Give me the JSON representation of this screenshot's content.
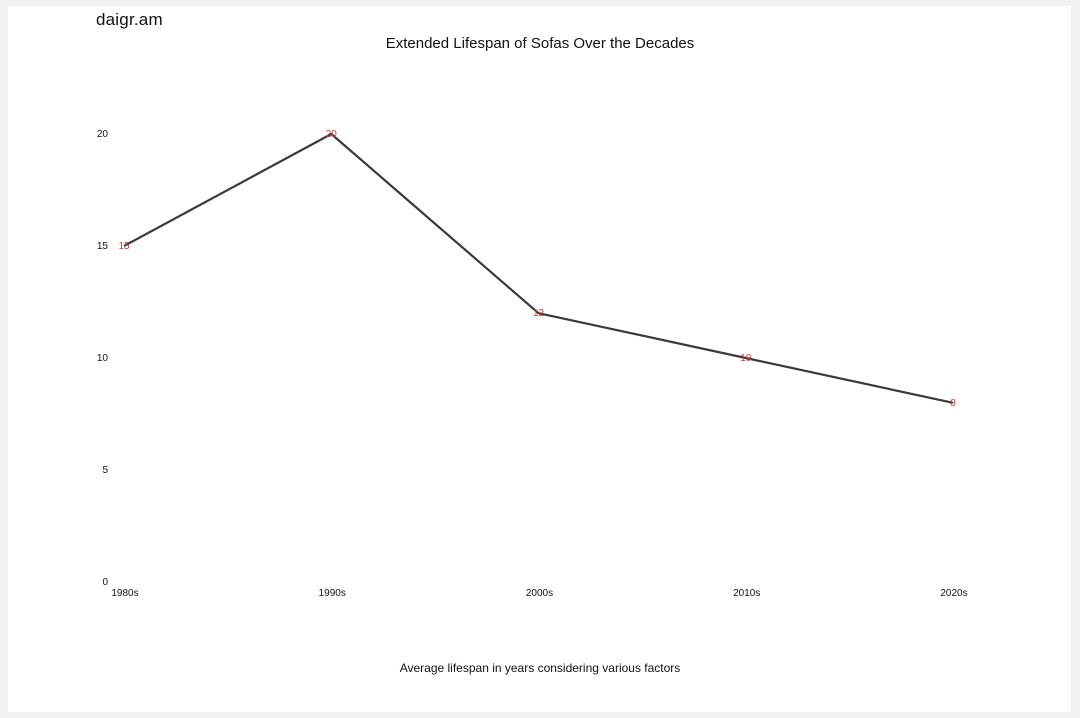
{
  "watermark": "daigr.am",
  "chart_data": {
    "type": "line",
    "title": "Extended Lifespan of Sofas Over the Decades",
    "caption": "Average lifespan in years considering various factors",
    "xlabel": "",
    "ylabel": "",
    "categories": [
      "1980s",
      "1990s",
      "2000s",
      "2010s",
      "2020s"
    ],
    "values": [
      15,
      20,
      12,
      10,
      8
    ],
    "ylim": [
      0,
      20
    ],
    "yticks": [
      0,
      5,
      10,
      15,
      20
    ],
    "grid": false,
    "legend": "none",
    "line_color": "#3a3a3a",
    "label_color": "#d43a3a"
  }
}
